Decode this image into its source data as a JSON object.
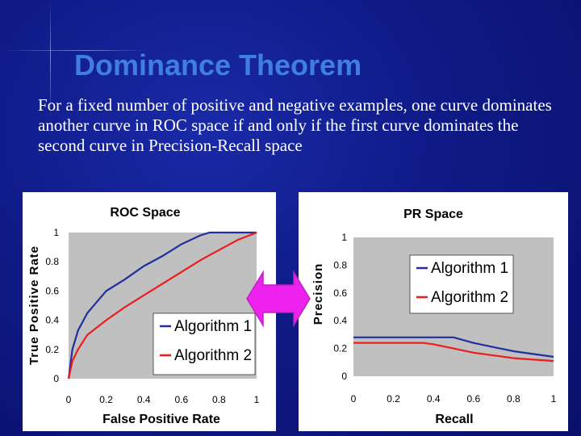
{
  "slide": {
    "title": "Dominance Theorem",
    "body": "For a fixed number of positive and negative examples, one curve dominates another curve in ROC space if and only if the first curve dominates the second curve in Precision-Recall space"
  },
  "colors": {
    "background": "#0f1a86",
    "title": "#3f7fe0",
    "algorithm_1": "#1f2f9e",
    "algorithm_2": "#ee1c1c",
    "arrow": "#ee22ee",
    "plot_area": "#c0c0c0"
  },
  "icons": {
    "double_arrow": "left-right-arrow-icon"
  },
  "chart_data": [
    {
      "type": "line",
      "title": "ROC Space",
      "xlabel": "False Positive Rate",
      "ylabel": "True Positive Rate",
      "xlim": [
        0,
        1
      ],
      "ylim": [
        0,
        1
      ],
      "x_ticks": [
        "0",
        "0.2",
        "0.4",
        "0.6",
        "0.8",
        "1"
      ],
      "y_ticks": [
        "0",
        "0.2",
        "0.4",
        "0.6",
        "0.8",
        "1"
      ],
      "legend_position": "bottom-right",
      "series": [
        {
          "name": "Algorithm 1",
          "color": "#1f2f9e",
          "points": [
            [
              0,
              0
            ],
            [
              0.02,
              0.2
            ],
            [
              0.05,
              0.33
            ],
            [
              0.1,
              0.45
            ],
            [
              0.2,
              0.6
            ],
            [
              0.3,
              0.68
            ],
            [
              0.4,
              0.77
            ],
            [
              0.5,
              0.84
            ],
            [
              0.6,
              0.92
            ],
            [
              0.7,
              0.98
            ],
            [
              0.75,
              1.0
            ],
            [
              1.0,
              1.0
            ]
          ]
        },
        {
          "name": "Algorithm 2",
          "color": "#ee1c1c",
          "points": [
            [
              0,
              0
            ],
            [
              0.02,
              0.12
            ],
            [
              0.05,
              0.2
            ],
            [
              0.1,
              0.3
            ],
            [
              0.2,
              0.4
            ],
            [
              0.3,
              0.49
            ],
            [
              0.4,
              0.57
            ],
            [
              0.5,
              0.65
            ],
            [
              0.6,
              0.73
            ],
            [
              0.7,
              0.81
            ],
            [
              0.8,
              0.88
            ],
            [
              0.9,
              0.95
            ],
            [
              1.0,
              1.0
            ]
          ]
        }
      ]
    },
    {
      "type": "line",
      "title": "PR Space",
      "xlabel": "Recall",
      "ylabel": "Precision",
      "xlim": [
        0,
        1
      ],
      "ylim": [
        0,
        1
      ],
      "x_ticks": [
        "0",
        "0.2",
        "0.4",
        "0.6",
        "0.8",
        "1"
      ],
      "y_ticks": [
        "0",
        "0.2",
        "0.4",
        "0.6",
        "0.8",
        "1"
      ],
      "legend_position": "top-right",
      "series": [
        {
          "name": "Algorithm 1",
          "color": "#1f2f9e",
          "points": [
            [
              0,
              0.28
            ],
            [
              0.1,
              0.28
            ],
            [
              0.2,
              0.28
            ],
            [
              0.3,
              0.28
            ],
            [
              0.4,
              0.28
            ],
            [
              0.5,
              0.28
            ],
            [
              0.6,
              0.24
            ],
            [
              0.7,
              0.21
            ],
            [
              0.8,
              0.18
            ],
            [
              0.9,
              0.16
            ],
            [
              1.0,
              0.14
            ]
          ]
        },
        {
          "name": "Algorithm 2",
          "color": "#ee1c1c",
          "points": [
            [
              0,
              0.24
            ],
            [
              0.1,
              0.24
            ],
            [
              0.2,
              0.24
            ],
            [
              0.3,
              0.24
            ],
            [
              0.35,
              0.24
            ],
            [
              0.4,
              0.23
            ],
            [
              0.5,
              0.2
            ],
            [
              0.6,
              0.17
            ],
            [
              0.7,
              0.15
            ],
            [
              0.8,
              0.13
            ],
            [
              0.9,
              0.12
            ],
            [
              1.0,
              0.11
            ]
          ]
        }
      ]
    }
  ]
}
